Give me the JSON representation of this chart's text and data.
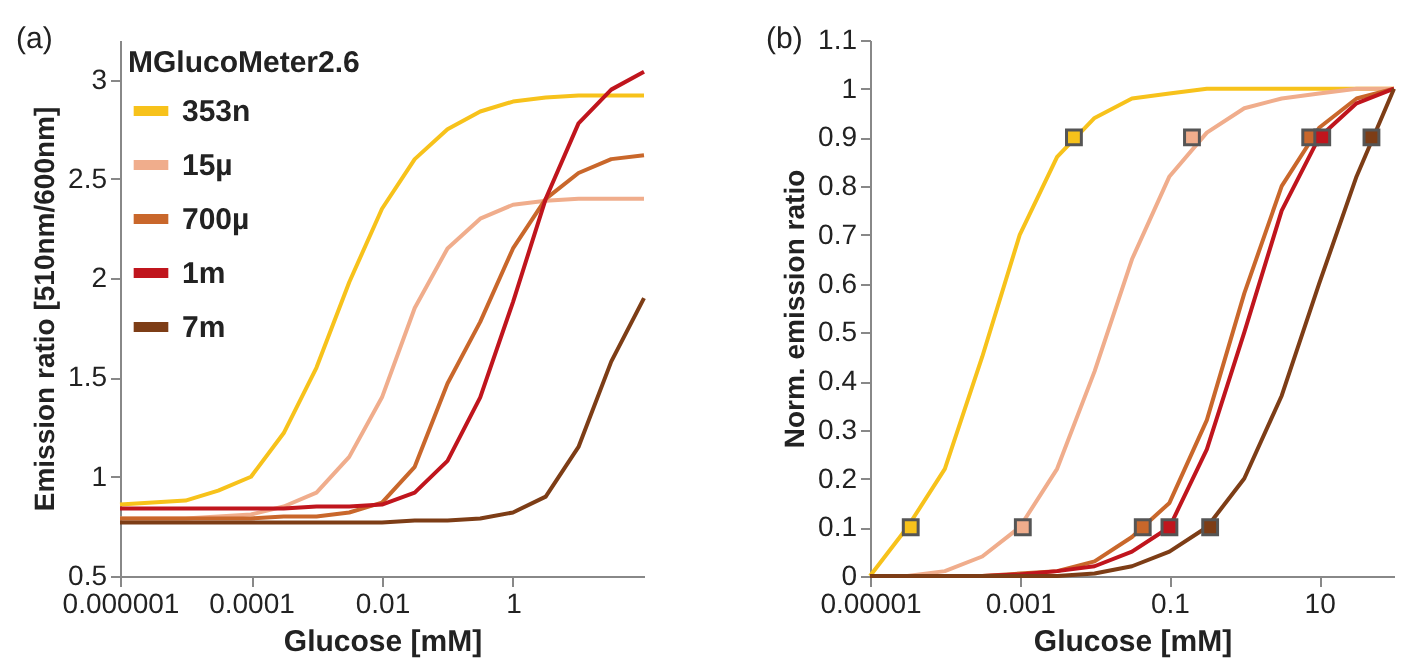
{
  "chart_data": [
    {
      "type": "line",
      "annotations": [
        "(a)"
      ],
      "xlabel": "Glucose [mM]",
      "ylabel": "Emission ratio [510nm/600nm]",
      "legend_title": "MGlucoMeter2.6",
      "legend": "top left",
      "log": "x",
      "grid": false,
      "marker": "none",
      "line_style": "solid",
      "xlim": [
        1e-06,
        100
      ],
      "xticks": [
        {
          "value": 1e-06,
          "label": "0.000001"
        },
        0.0001,
        0.01,
        1
      ],
      "ylim": [
        0.5,
        3.2
      ],
      "yticks": [
        0.5,
        1,
        1.5,
        2,
        2.5,
        3
      ],
      "x": [
        1e-06,
        1e-05,
        3.16e-05,
        0.0001,
        0.000316,
        0.001,
        0.00316,
        0.01,
        0.0316,
        0.1,
        0.316,
        1,
        3.16,
        10,
        31.6,
        100
      ],
      "series": [
        {
          "name": "353n",
          "color": "#f7c21b",
          "values": [
            0.86,
            0.88,
            0.93,
            1.0,
            1.22,
            1.55,
            1.98,
            2.35,
            2.6,
            2.75,
            2.84,
            2.89,
            2.91,
            2.92,
            2.92,
            2.92
          ]
        },
        {
          "name": "15µ",
          "color": "#f0ad8c",
          "values": [
            0.79,
            0.79,
            0.8,
            0.81,
            0.85,
            0.92,
            1.1,
            1.4,
            1.85,
            2.15,
            2.3,
            2.37,
            2.39,
            2.4,
            2.4,
            2.4
          ]
        },
        {
          "name": "700µ",
          "color": "#c9672b",
          "values": [
            0.79,
            0.79,
            0.79,
            0.79,
            0.8,
            0.8,
            0.82,
            0.87,
            1.05,
            1.47,
            1.78,
            2.15,
            2.4,
            2.53,
            2.6,
            2.62
          ]
        },
        {
          "name": "1m",
          "color": "#c0151d",
          "values": [
            0.84,
            0.84,
            0.84,
            0.84,
            0.84,
            0.85,
            0.85,
            0.86,
            0.92,
            1.08,
            1.4,
            1.88,
            2.4,
            2.78,
            2.95,
            3.04
          ]
        },
        {
          "name": "7m",
          "color": "#7d3d16",
          "values": [
            0.77,
            0.77,
            0.77,
            0.77,
            0.77,
            0.77,
            0.77,
            0.77,
            0.78,
            0.78,
            0.79,
            0.82,
            0.9,
            1.15,
            1.58,
            1.9
          ]
        }
      ]
    },
    {
      "type": "line",
      "annotations": [
        "(b)"
      ],
      "xlabel": "Glucose [mM]",
      "ylabel": "Norm. emission ratio",
      "legend": false,
      "log": "x",
      "grid": false,
      "marker": "none",
      "line_style": "solid",
      "xlim": [
        1e-05,
        100
      ],
      "xticks": [
        {
          "value": 1e-05,
          "label": "0.00001"
        },
        0.001,
        0.1,
        10
      ],
      "ylim": [
        0,
        1.1
      ],
      "yticks": [
        0,
        0.1,
        0.2,
        0.3,
        0.4,
        0.5,
        0.6,
        0.7,
        0.8,
        0.9,
        1,
        1.1
      ],
      "x": [
        1e-05,
        3.16e-05,
        0.0001,
        0.000316,
        0.001,
        0.00316,
        0.01,
        0.0316,
        0.1,
        0.316,
        1,
        3.16,
        10,
        31.6,
        100
      ],
      "series": [
        {
          "color": "#f7c21b",
          "values": [
            0,
            0.1,
            0.22,
            0.45,
            0.7,
            0.86,
            0.94,
            0.98,
            0.99,
            1,
            1,
            1,
            1,
            1,
            1
          ]
        },
        {
          "color": "#f0ad8c",
          "values": [
            0,
            0,
            0.01,
            0.04,
            0.1,
            0.22,
            0.42,
            0.65,
            0.82,
            0.91,
            0.96,
            0.98,
            0.99,
            1,
            1
          ]
        },
        {
          "color": "#c9672b",
          "values": [
            0,
            0,
            0,
            0,
            0.005,
            0.01,
            0.03,
            0.08,
            0.15,
            0.32,
            0.58,
            0.8,
            0.92,
            0.98,
            1
          ]
        },
        {
          "color": "#c0151d",
          "values": [
            0,
            0,
            0,
            0,
            0.003,
            0.01,
            0.02,
            0.05,
            0.1,
            0.26,
            0.5,
            0.75,
            0.9,
            0.97,
            1
          ]
        },
        {
          "color": "#7d3d16",
          "values": [
            0,
            0,
            0,
            0,
            0,
            0,
            0.005,
            0.02,
            0.05,
            0.1,
            0.2,
            0.37,
            0.6,
            0.82,
            1
          ]
        },
        {
          "type": "scatter",
          "marker": "square",
          "color": "#f7c21b",
          "x": [
            3.5e-05,
            0.0053
          ],
          "values": [
            0.1,
            0.9
          ]
        },
        {
          "type": "scatter",
          "marker": "square",
          "color": "#f0ad8c",
          "x": [
            0.0011,
            0.2
          ],
          "values": [
            0.1,
            0.9
          ]
        },
        {
          "type": "scatter",
          "marker": "square",
          "color": "#c9672b",
          "x": [
            0.044,
            7.6
          ],
          "values": [
            0.1,
            0.9
          ]
        },
        {
          "type": "scatter",
          "marker": "square",
          "color": "#c0151d",
          "x": [
            0.1,
            11
          ],
          "values": [
            0.1,
            0.9
          ]
        },
        {
          "type": "scatter",
          "marker": "square",
          "color": "#7d3d16",
          "x": [
            0.35,
            50
          ],
          "values": [
            0.1,
            0.9
          ]
        }
      ]
    }
  ]
}
